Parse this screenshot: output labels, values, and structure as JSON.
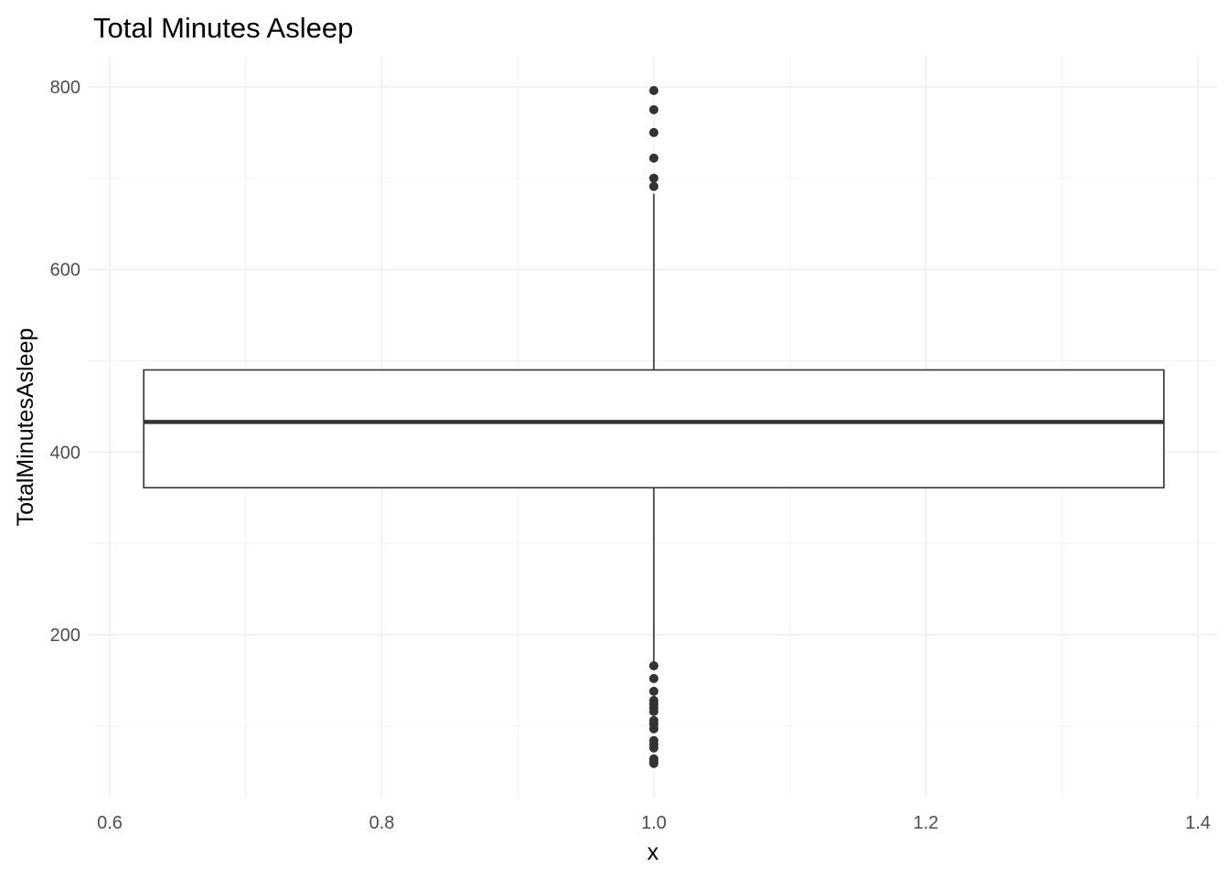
{
  "chart_data": {
    "type": "boxplot",
    "title": "Total Minutes Asleep",
    "xlabel": "x",
    "ylabel": "TotalMinutesAsleep",
    "xlim": [
      0.6,
      1.41
    ],
    "ylim": [
      45,
      815
    ],
    "x_ticks": [
      0.6,
      0.8,
      1.0,
      1.2,
      1.4
    ],
    "x_tick_labels": [
      "0.6",
      "0.8",
      "1.0",
      "1.2",
      "1.4"
    ],
    "y_ticks": [
      200,
      400,
      600,
      800
    ],
    "y_tick_labels": [
      "200",
      "400",
      "600",
      "800"
    ],
    "x_minor_ticks": [
      0.7,
      0.9,
      1.1,
      1.3
    ],
    "y_minor_ticks": [
      100,
      300,
      500,
      700
    ],
    "grid": true,
    "legend": "none",
    "box": {
      "x": 1.0,
      "width": 0.75,
      "q1": 361,
      "median": 433,
      "q3": 490,
      "whisker_low": 168,
      "whisker_high": 683
    },
    "outliers": [
      796,
      775,
      750,
      722,
      700,
      691,
      166,
      152,
      138,
      128,
      124,
      120,
      116,
      106,
      102,
      97,
      84,
      80,
      76,
      64,
      61,
      59
    ],
    "colors": {
      "box_fill": "#ffffff",
      "box_line": "#333333",
      "outlier": "#333333",
      "grid_major": "#ebebeb",
      "grid_minor": "#f3f3f3"
    }
  }
}
